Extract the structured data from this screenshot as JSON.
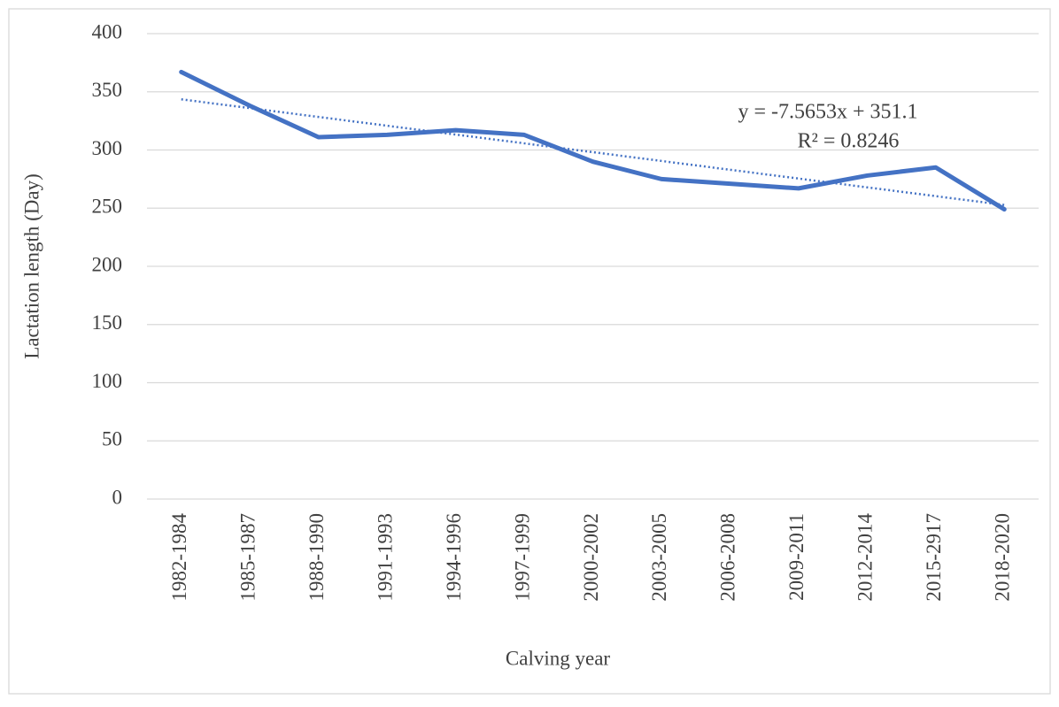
{
  "chart_data": {
    "type": "line",
    "x_label": "Calving year",
    "y_label": "Lactation length (Day)",
    "categories": [
      "1982-1984",
      "1985-1987",
      "1988-1990",
      "1991-1993",
      "1994-1996",
      "1997-1999",
      "2000-2002",
      "2003-2005",
      "2006-2008",
      "2009-2011",
      "2012-2014",
      "2015-2917",
      "2018-2020"
    ],
    "values": [
      367,
      338,
      311,
      313,
      317,
      313,
      290,
      275,
      271,
      267,
      278,
      285,
      249
    ],
    "color": "#4472c4",
    "ylim": [
      0,
      400
    ],
    "yticks": [
      0,
      50,
      100,
      150,
      200,
      250,
      300,
      350,
      400
    ],
    "grid": true,
    "trendline": {
      "equation": "y = -7.5653x + 351.1",
      "r_squared": "R² = 0.8246",
      "slope": -7.5653,
      "intercept": 351.1,
      "color": "#4472c4"
    }
  }
}
